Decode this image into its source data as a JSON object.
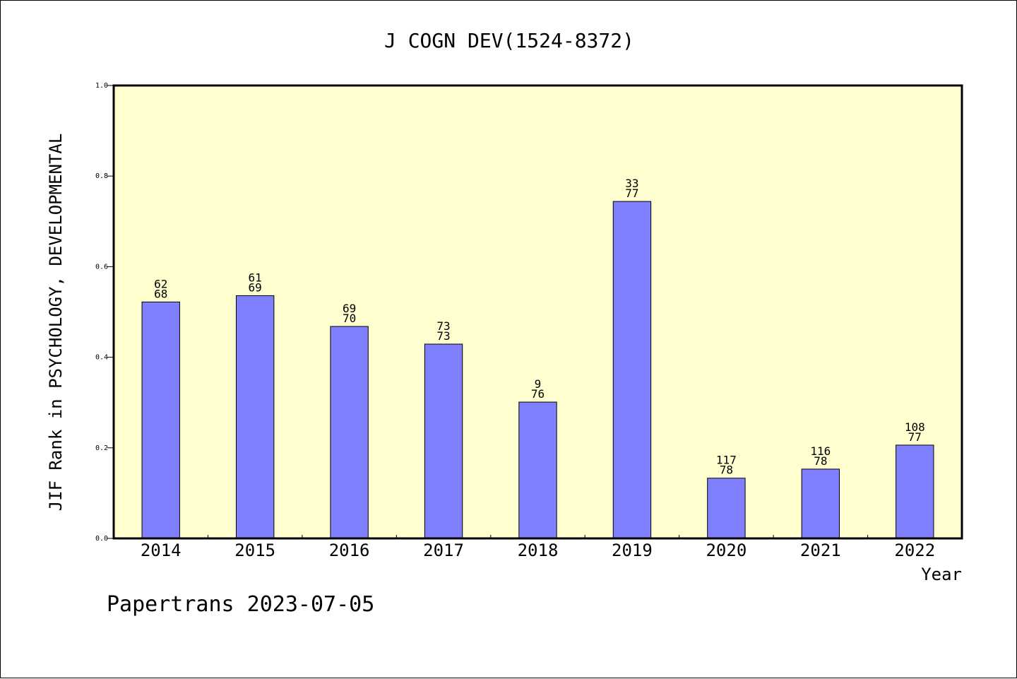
{
  "chart_data": {
    "type": "bar",
    "title": "J COGN DEV(1524-8372)",
    "xlabel": "Year",
    "ylabel": "JIF Rank in PSYCHOLOGY, DEVELOPMENTAL",
    "categories": [
      "2014",
      "2015",
      "2016",
      "2017",
      "2018",
      "2019",
      "2020",
      "2021",
      "2022"
    ],
    "values": [
      0.522,
      0.536,
      0.468,
      0.429,
      0.301,
      0.744,
      0.133,
      0.153,
      0.206
    ],
    "rank": [
      "62",
      "61",
      "69",
      "73",
      "9",
      "33",
      "117",
      "116",
      "108"
    ],
    "total": [
      "68",
      "69",
      "70",
      "73",
      "76",
      "77",
      "78",
      "78",
      "77"
    ],
    "ylim": [
      0,
      1.0
    ],
    "yticks": [
      "0.0",
      "0.2",
      "0.4",
      "0.6",
      "0.8",
      "1.0"
    ],
    "grid": false,
    "colors": {
      "plot_background": "#ffffd0",
      "bar_fill": "#8080ff",
      "bar_stroke": "#000000"
    }
  },
  "footer": {
    "text": "Papertrans 2023-07-05"
  }
}
